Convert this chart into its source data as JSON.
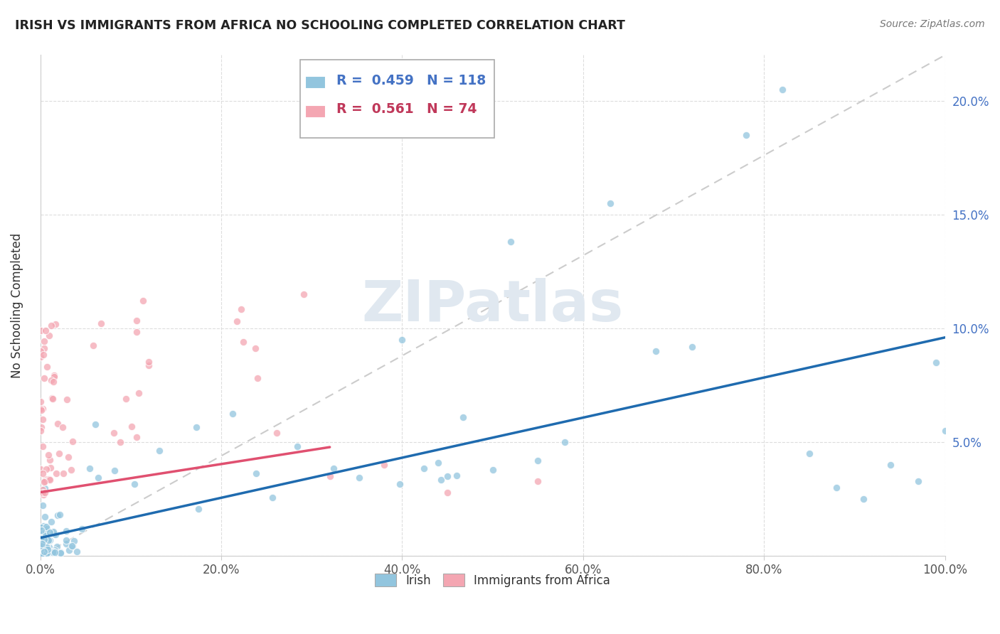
{
  "title": "IRISH VS IMMIGRANTS FROM AFRICA NO SCHOOLING COMPLETED CORRELATION CHART",
  "source": "Source: ZipAtlas.com",
  "ylabel": "No Schooling Completed",
  "watermark": "ZIPatlas",
  "legend_irish": "Irish",
  "legend_africa": "Immigrants from Africa",
  "r_irish": "0.459",
  "n_irish": "118",
  "r_africa": "0.561",
  "n_africa": "74",
  "irish_color": "#92c5de",
  "africa_color": "#f4a6b2",
  "irish_line_color": "#1f6baf",
  "africa_line_color": "#e05070",
  "trendline_color": "#cccccc",
  "xlim": [
    0,
    1.0
  ],
  "ylim": [
    0,
    0.22
  ],
  "xticks": [
    0.0,
    0.2,
    0.4,
    0.6,
    0.8,
    1.0
  ],
  "yticks": [
    0.0,
    0.05,
    0.1,
    0.15,
    0.2
  ],
  "xtick_labels": [
    "0.0%",
    "20.0%",
    "40.0%",
    "60.0%",
    "80.0%",
    "100.0%"
  ],
  "ytick_labels_right": [
    "",
    "5.0%",
    "10.0%",
    "15.0%",
    "20.0%"
  ],
  "irish_slope": 0.088,
  "irish_intercept": 0.008,
  "africa_slope": 0.062,
  "africa_intercept": 0.028,
  "africa_line_xmax": 0.32
}
